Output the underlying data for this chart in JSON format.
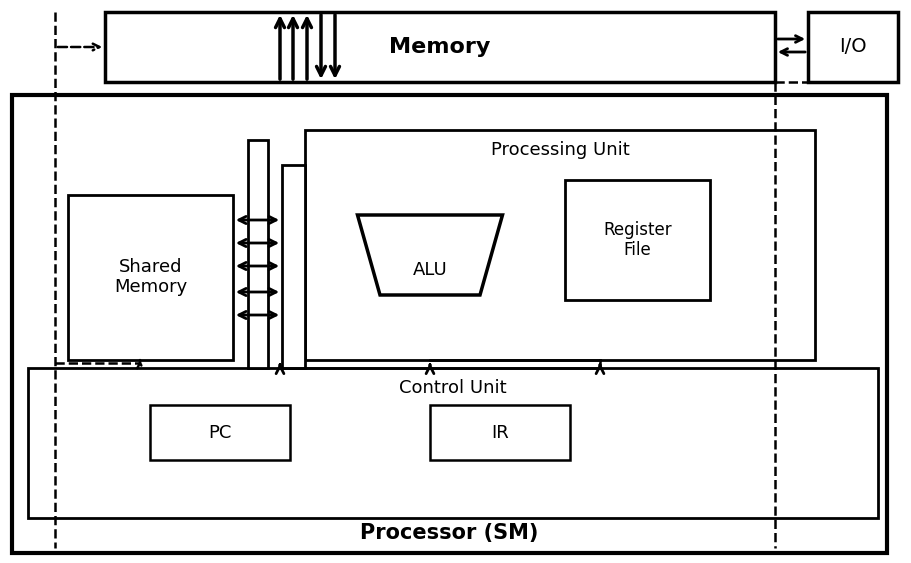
{
  "bg_color": "#ffffff",
  "line_color": "#000000",
  "figsize": [
    9.11,
    5.63
  ],
  "dpi": 100,
  "proc_label": "Processor (SM)",
  "mem_label": "Memory",
  "io_label": "I/O",
  "cu_label": "Control Unit",
  "pc_label": "PC",
  "ir_label": "IR",
  "pu_label": "Processing Unit",
  "alu_label": "ALU",
  "rf_label1": "Register",
  "rf_label2": "File",
  "sm_label1": "Shared",
  "sm_label2": "Memory"
}
